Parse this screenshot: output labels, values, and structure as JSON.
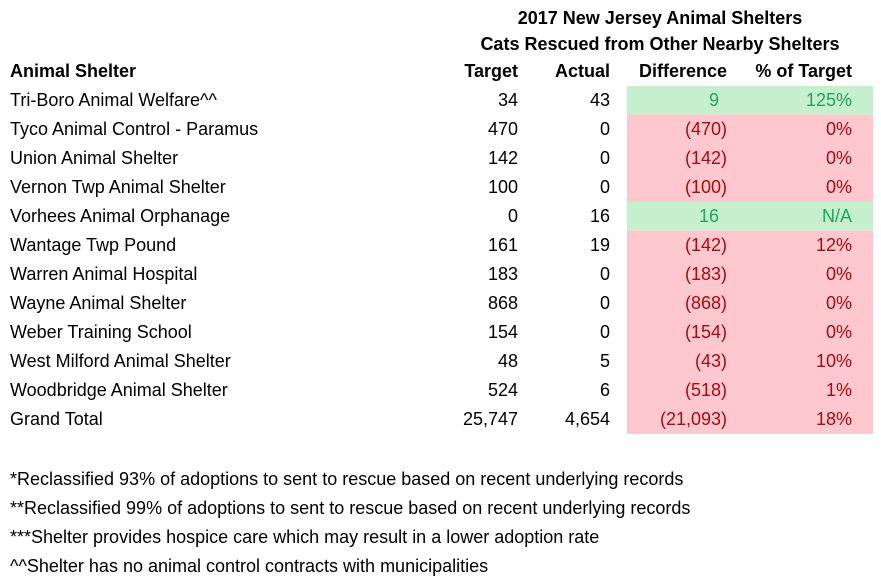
{
  "title": {
    "line1": "2017 New Jersey Animal Shelters",
    "line2": "Cats Rescued from Other Nearby Shelters"
  },
  "table": {
    "headers": {
      "shelter": "Animal Shelter",
      "target": "Target",
      "actual": "Actual",
      "difference": "Difference",
      "pct": "% of Target"
    },
    "rows": [
      {
        "shelter": "Tri-Boro Animal Welfare^^",
        "target": "34",
        "actual": "43",
        "difference": "9",
        "pct": "125%",
        "status": "good"
      },
      {
        "shelter": "Tyco Animal Control - Paramus",
        "target": "470",
        "actual": "0",
        "difference": "(470)",
        "pct": "0%",
        "status": "bad"
      },
      {
        "shelter": "Union Animal Shelter",
        "target": "142",
        "actual": "0",
        "difference": "(142)",
        "pct": "0%",
        "status": "bad"
      },
      {
        "shelter": "Vernon Twp Animal Shelter",
        "target": "100",
        "actual": "0",
        "difference": "(100)",
        "pct": "0%",
        "status": "bad"
      },
      {
        "shelter": "Vorhees Animal Orphanage",
        "target": "0",
        "actual": "16",
        "difference": "16",
        "pct": "N/A",
        "status": "good"
      },
      {
        "shelter": "Wantage Twp Pound",
        "target": "161",
        "actual": "19",
        "difference": "(142)",
        "pct": "12%",
        "status": "bad"
      },
      {
        "shelter": "Warren Animal Hospital",
        "target": "183",
        "actual": "0",
        "difference": "(183)",
        "pct": "0%",
        "status": "bad"
      },
      {
        "shelter": "Wayne Animal Shelter",
        "target": "868",
        "actual": "0",
        "difference": "(868)",
        "pct": "0%",
        "status": "bad"
      },
      {
        "shelter": "Weber Training School",
        "target": "154",
        "actual": "0",
        "difference": "(154)",
        "pct": "0%",
        "status": "bad"
      },
      {
        "shelter": "West Milford Animal Shelter",
        "target": "48",
        "actual": "5",
        "difference": "(43)",
        "pct": "10%",
        "status": "bad"
      },
      {
        "shelter": "Woodbridge Animal Shelter",
        "target": "524",
        "actual": "6",
        "difference": "(518)",
        "pct": "1%",
        "status": "bad"
      },
      {
        "shelter": "Grand Total",
        "target": "25,747",
        "actual": "4,654",
        "difference": "(21,093)",
        "pct": "18%",
        "status": "bad"
      }
    ]
  },
  "footnotes": [
    "*Reclassified 93% of adoptions to sent to rescue based on recent underlying records",
    "**Reclassified 99% of adoptions to sent to rescue based on recent underlying records",
    "***Shelter provides hospice care which may result in a lower adoption rate",
    "^^Shelter has no animal control contracts with municipalities"
  ],
  "colors": {
    "good_bg": "#c6efce",
    "good_text": "#23a45c",
    "bad_bg": "#ffc7ce",
    "bad_text": "#a50b10",
    "text": "#000000",
    "background": "#ffffff"
  },
  "chart_data": {
    "type": "table",
    "title": "2017 New Jersey Animal Shelters",
    "subtitle": "Cats Rescued from Other Nearby Shelters",
    "columns": [
      "Animal Shelter",
      "Target",
      "Actual",
      "Difference",
      "% of Target"
    ],
    "rows": [
      [
        "Tri-Boro Animal Welfare^^",
        34,
        43,
        9,
        "125%"
      ],
      [
        "Tyco Animal Control - Paramus",
        470,
        0,
        -470,
        "0%"
      ],
      [
        "Union Animal Shelter",
        142,
        0,
        -142,
        "0%"
      ],
      [
        "Vernon Twp Animal Shelter",
        100,
        0,
        -100,
        "0%"
      ],
      [
        "Vorhees Animal Orphanage",
        0,
        16,
        16,
        "N/A"
      ],
      [
        "Wantage Twp Pound",
        161,
        19,
        -142,
        "12%"
      ],
      [
        "Warren Animal Hospital",
        183,
        0,
        -183,
        "0%"
      ],
      [
        "Wayne Animal Shelter",
        868,
        0,
        -868,
        "0%"
      ],
      [
        "Weber Training School",
        154,
        0,
        -154,
        "0%"
      ],
      [
        "West Milford Animal Shelter",
        48,
        5,
        -43,
        "10%"
      ],
      [
        "Woodbridge Animal Shelter",
        524,
        6,
        -518,
        "1%"
      ],
      [
        "Grand Total",
        25747,
        4654,
        -21093,
        "18%"
      ]
    ],
    "notes": [
      "*Reclassified 93% of adoptions to sent to rescue based on recent underlying records",
      "**Reclassified 99% of adoptions to sent to rescue based on recent underlying records",
      "***Shelter provides hospice care which may result in a lower adoption rate",
      "^^Shelter has no animal control contracts with municipalities"
    ]
  }
}
